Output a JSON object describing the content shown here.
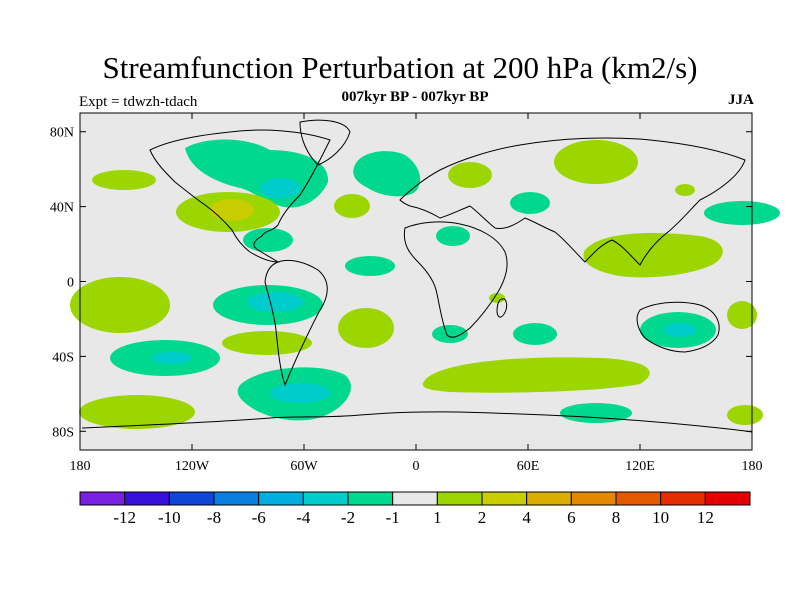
{
  "header": {
    "title": "Streamfunction Perturbation at 200 hPa (km2/s)",
    "subtitle": "007kyr BP - 007kyr BP",
    "left_label": "Expt = tdwzh-tdach",
    "right_label": "JJA"
  },
  "map": {
    "projection": "cylindrical equidistant",
    "lon_range": [
      -180,
      180
    ],
    "lat_range": [
      -90,
      90
    ],
    "x_ticks": [
      {
        "value": -180,
        "label": "180"
      },
      {
        "value": -120,
        "label": "120W"
      },
      {
        "value": -60,
        "label": "60W"
      },
      {
        "value": 0,
        "label": "0"
      },
      {
        "value": 60,
        "label": "60E"
      },
      {
        "value": 120,
        "label": "120E"
      },
      {
        "value": 180,
        "label": "180"
      }
    ],
    "y_ticks": [
      {
        "value": 80,
        "label": "80N"
      },
      {
        "value": 40,
        "label": "40N"
      },
      {
        "value": 0,
        "label": "0"
      },
      {
        "value": -40,
        "label": "40S"
      },
      {
        "value": -80,
        "label": "80S"
      }
    ],
    "background_color": "#e8e8e8"
  },
  "colorbar": {
    "colors": [
      "#7b1fe0",
      "#3a10dc",
      "#1046d8",
      "#0a7ee0",
      "#00aee0",
      "#00cccc",
      "#00d890",
      "#e8e8e8",
      "#9cd600",
      "#c8cc00",
      "#dcac00",
      "#e48800",
      "#e45a00",
      "#e42e00",
      "#e40000"
    ],
    "labels": [
      "-12",
      "-10",
      "-8",
      "-6",
      "-4",
      "-2",
      "-1",
      "1",
      "2",
      "4",
      "6",
      "8",
      "10",
      "12"
    ]
  }
}
